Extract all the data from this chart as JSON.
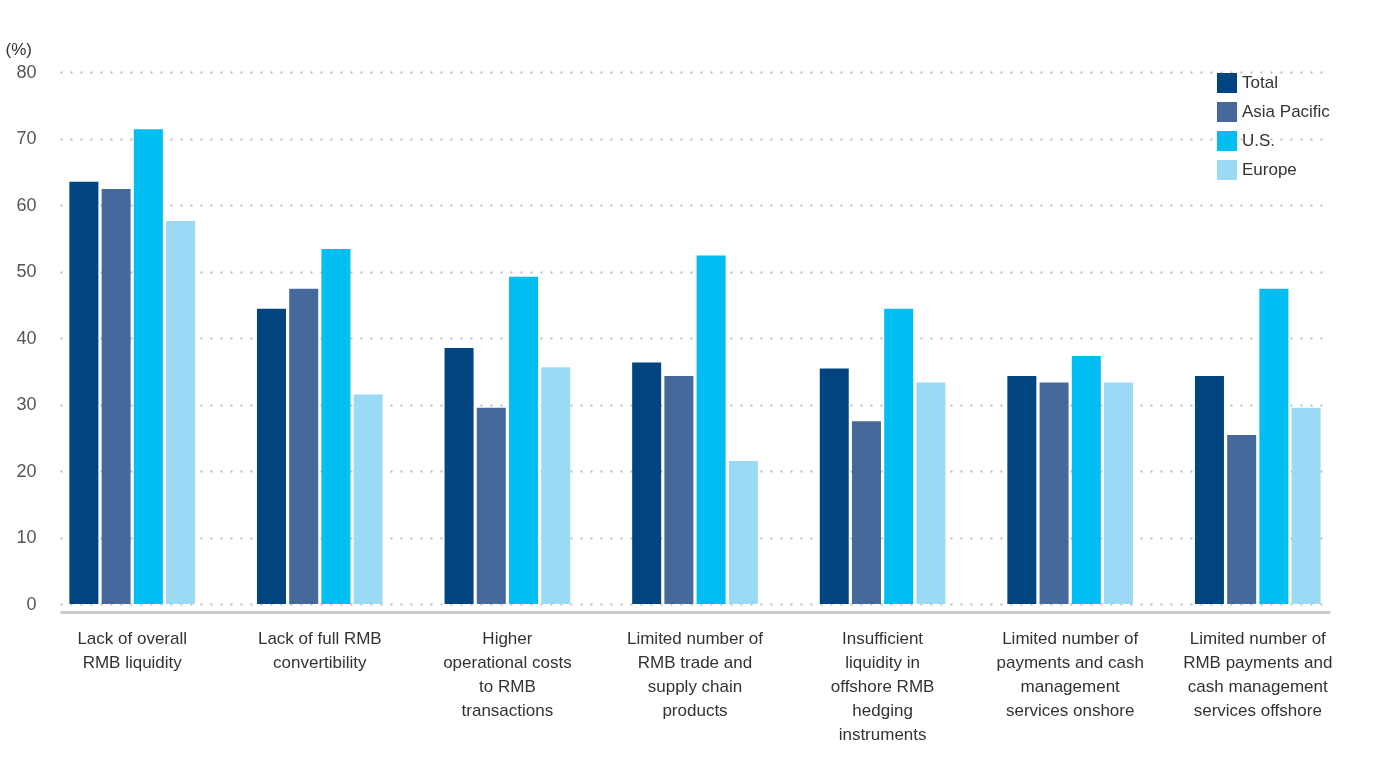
{
  "chart_data": {
    "type": "bar",
    "ylabel": "(%)",
    "categories": [
      "Lack of overall RMB liquidity",
      "Lack of full RMB convertibility",
      "Higher operational costs to RMB transactions",
      "Limited number of RMB trade and supply chain products",
      "Insufficient liquidity in offshore RMB hedging instruments",
      "Limited number of payments and cash management services onshore",
      "Limited number of RMB payments and cash management services offshore"
    ],
    "series": [
      {
        "name": "Total",
        "color": "#00457f",
        "values": [
          63.5,
          44.4,
          38.5,
          36.3,
          35.4,
          34.3,
          34.3
        ]
      },
      {
        "name": "Asia Pacific",
        "color": "#46699c",
        "values": [
          62.4,
          47.4,
          29.5,
          34.3,
          27.5,
          33.3,
          25.4
        ]
      },
      {
        "name": "U.S.",
        "color": "#00bef2",
        "values": [
          71.4,
          53.4,
          49.2,
          52.4,
          44.4,
          37.3,
          47.4
        ]
      },
      {
        "name": "Europe",
        "color": "#9adaf5",
        "values": [
          57.6,
          31.5,
          35.6,
          21.5,
          33.3,
          33.3,
          29.5
        ]
      }
    ],
    "ylim": [
      -1.2,
      80
    ],
    "yticks": [
      0,
      10,
      20,
      30,
      40,
      50,
      60,
      70,
      80
    ],
    "grid": "y",
    "legend": "top right"
  }
}
